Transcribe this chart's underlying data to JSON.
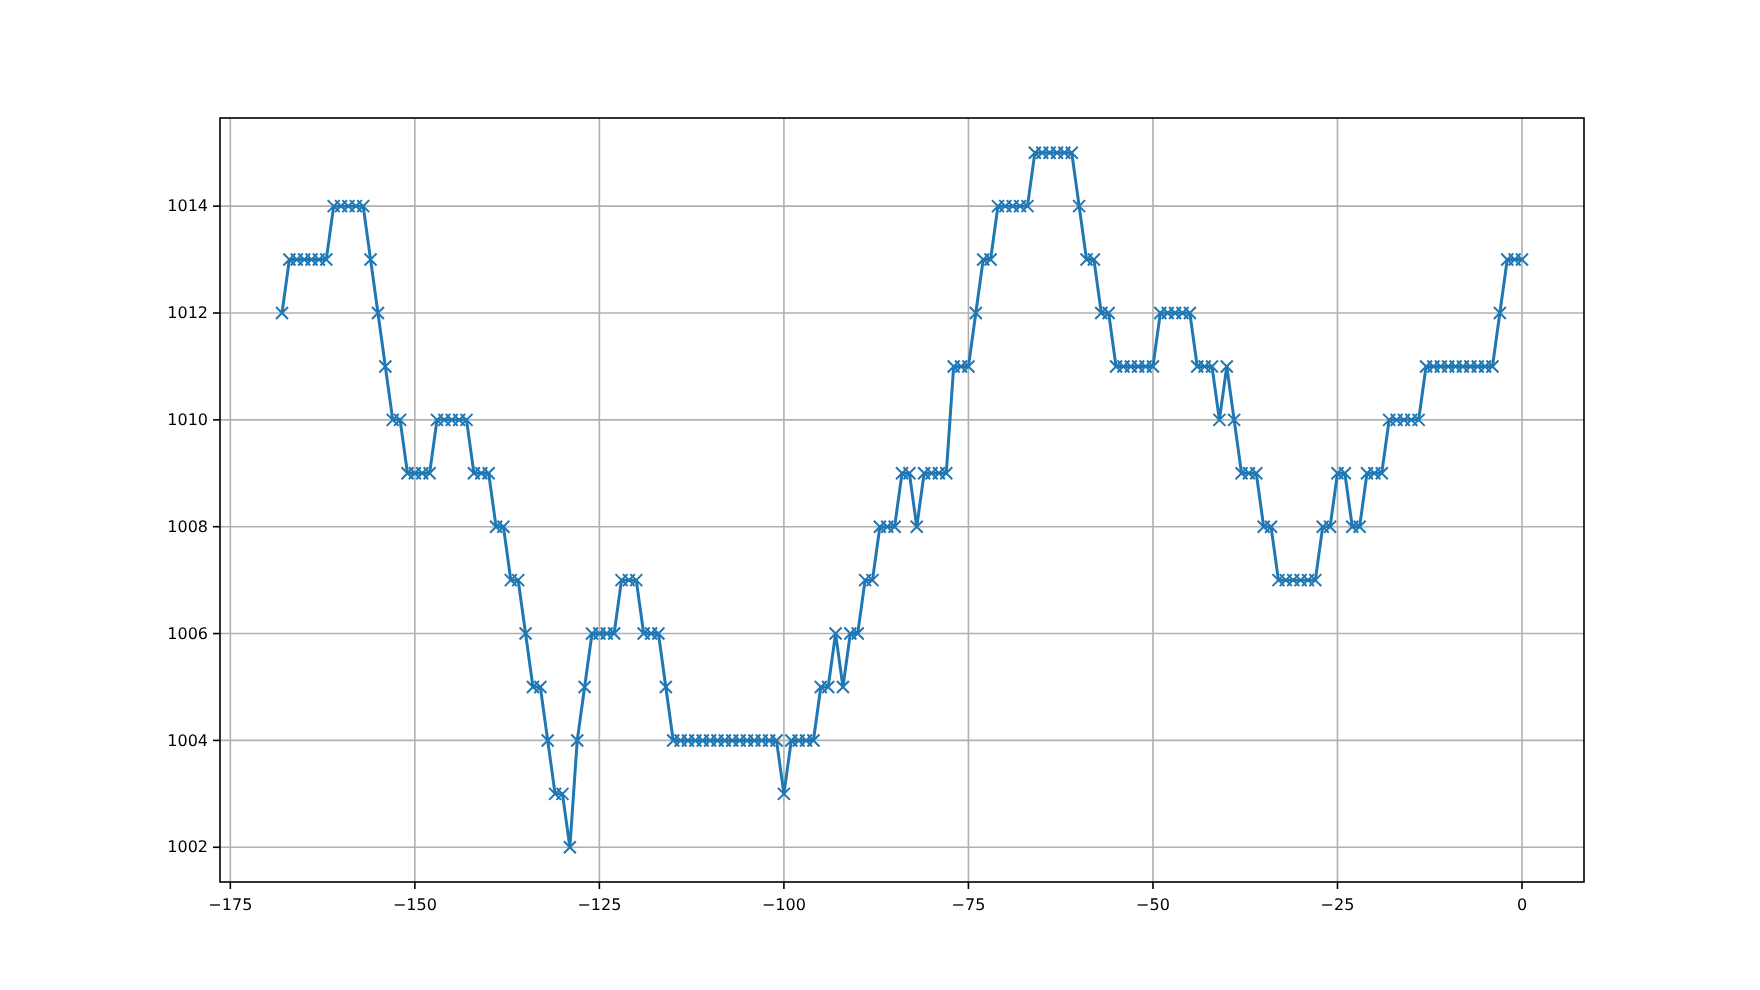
{
  "chart_data": {
    "type": "line",
    "x": [
      -168,
      -167,
      -166,
      -165,
      -164,
      -163,
      -162,
      -161,
      -160,
      -159,
      -158,
      -157,
      -156,
      -155,
      -154,
      -153,
      -152,
      -151,
      -150,
      -149,
      -148,
      -147,
      -146,
      -145,
      -144,
      -143,
      -142,
      -141,
      -140,
      -139,
      -138,
      -137,
      -136,
      -135,
      -134,
      -133,
      -132,
      -131,
      -130,
      -129,
      -128,
      -127,
      -126,
      -125,
      -124,
      -123,
      -122,
      -121,
      -120,
      -119,
      -118,
      -117,
      -116,
      -115,
      -114,
      -113,
      -112,
      -111,
      -110,
      -109,
      -108,
      -107,
      -106,
      -105,
      -104,
      -103,
      -102,
      -101,
      -100,
      -99,
      -98,
      -97,
      -96,
      -95,
      -94,
      -93,
      -92,
      -91,
      -90,
      -89,
      -88,
      -87,
      -86,
      -85,
      -84,
      -83,
      -82,
      -81,
      -80,
      -79,
      -78,
      -77,
      -76,
      -75,
      -74,
      -73,
      -72,
      -71,
      -70,
      -69,
      -68,
      -67,
      -66,
      -65,
      -64,
      -63,
      -62,
      -61,
      -60,
      -59,
      -58,
      -57,
      -56,
      -55,
      -54,
      -53,
      -52,
      -51,
      -50,
      -49,
      -48,
      -47,
      -46,
      -45,
      -44,
      -43,
      -42,
      -41,
      -40,
      -39,
      -38,
      -37,
      -36,
      -35,
      -34,
      -33,
      -32,
      -31,
      -30,
      -29,
      -28,
      -27,
      -26,
      -25,
      -24,
      -23,
      -22,
      -21,
      -20,
      -19,
      -18,
      -17,
      -16,
      -15,
      -14,
      -13,
      -12,
      -11,
      -10,
      -9,
      -8,
      -7,
      -6,
      -5,
      -4,
      -3,
      -2,
      -1,
      0
    ],
    "series": [
      {
        "color": "#1f77b4",
        "values": [
          1012,
          1013,
          1013,
          1013,
          1013,
          1013,
          1013,
          1014,
          1014,
          1014,
          1014,
          1014,
          1013,
          1012,
          1011,
          1010,
          1010,
          1009,
          1009,
          1009,
          1009,
          1010,
          1010,
          1010,
          1010,
          1010,
          1009,
          1009,
          1009,
          1008,
          1008,
          1007,
          1007,
          1006,
          1005,
          1005,
          1004,
          1003,
          1003,
          1002,
          1004,
          1005,
          1006,
          1006,
          1006,
          1006,
          1007,
          1007,
          1007,
          1006,
          1006,
          1006,
          1005,
          1004,
          1004,
          1004,
          1004,
          1004,
          1004,
          1004,
          1004,
          1004,
          1004,
          1004,
          1004,
          1004,
          1004,
          1004,
          1003,
          1004,
          1004,
          1004,
          1004,
          1005,
          1005,
          1006,
          1005,
          1006,
          1006,
          1007,
          1007,
          1008,
          1008,
          1008,
          1009,
          1009,
          1008,
          1009,
          1009,
          1009,
          1009,
          1011,
          1011,
          1011,
          1012,
          1013,
          1013,
          1014,
          1014,
          1014,
          1014,
          1014,
          1015,
          1015,
          1015,
          1015,
          1015,
          1015,
          1014,
          1013,
          1013,
          1012,
          1012,
          1011,
          1011,
          1011,
          1011,
          1011,
          1011,
          1012,
          1012,
          1012,
          1012,
          1012,
          1011,
          1011,
          1011,
          1010,
          1011,
          1010,
          1009,
          1009,
          1009,
          1008,
          1008,
          1007,
          1007,
          1007,
          1007,
          1007,
          1007,
          1008,
          1008,
          1009,
          1009,
          1008,
          1008,
          1009,
          1009,
          1009,
          1010,
          1010,
          1010,
          1010,
          1010,
          1011,
          1011,
          1011,
          1011,
          1011,
          1011,
          1011,
          1011,
          1011,
          1011,
          1012,
          1013,
          1013,
          1013
        ]
      }
    ],
    "xlim": [
      -176.4,
      8.4
    ],
    "xticks": [
      {
        "value": -175,
        "label": "−175"
      },
      {
        "value": -150,
        "label": "−150"
      },
      {
        "value": -125,
        "label": "−125"
      },
      {
        "value": -100,
        "label": "−100"
      },
      {
        "value": -75,
        "label": "−75"
      },
      {
        "value": -50,
        "label": "−50"
      },
      {
        "value": -25,
        "label": "−25"
      },
      0
    ],
    "ylim": [
      1001.35,
      1015.65
    ],
    "yticks": [
      1002,
      1004,
      1006,
      1008,
      1010,
      1012,
      1014
    ],
    "grid": true,
    "marker": "cross",
    "line_style": "solid"
  }
}
